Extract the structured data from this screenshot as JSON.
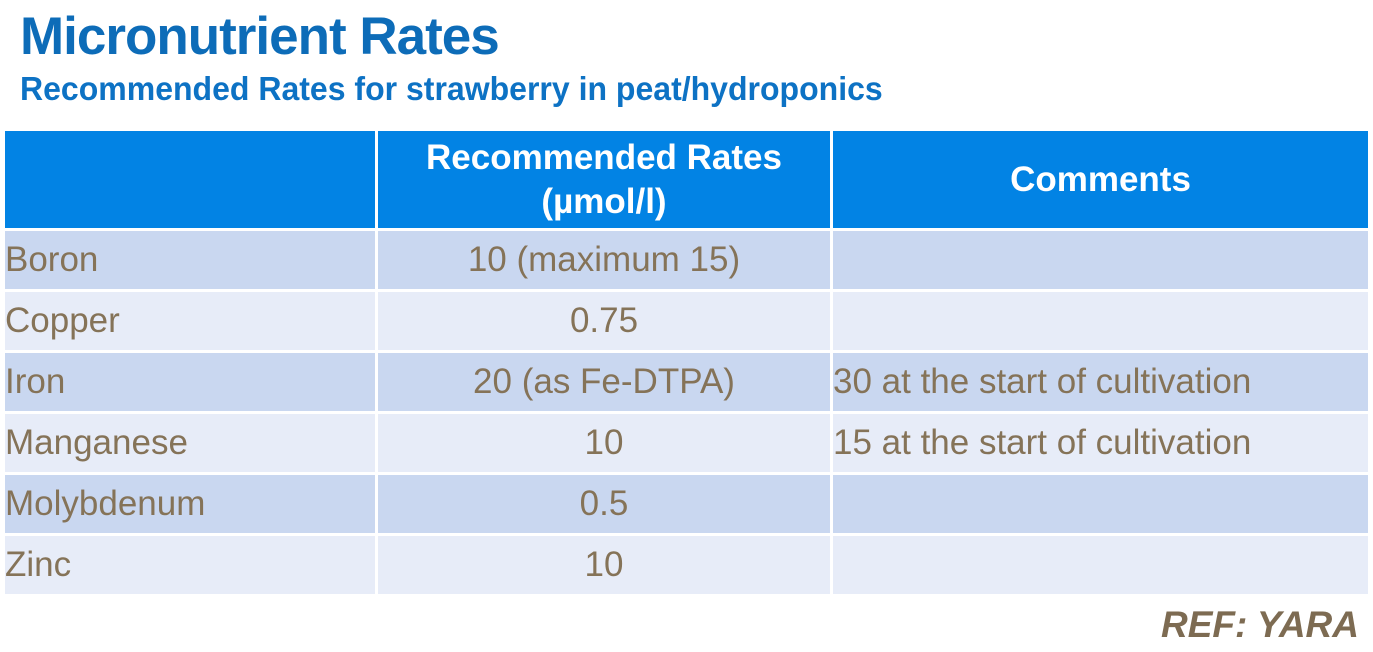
{
  "page": {
    "title": "Micronutrient Rates",
    "subtitle": "Recommended Rates for strawberry in peat/hydroponics",
    "footer_ref": "REF: YARA"
  },
  "colors": {
    "title_blue": "#0d6cb8",
    "subtitle_blue": "#0d72c4",
    "header_row_blue": "#0283e4",
    "header_text": "#ffffff",
    "row_stripe_dark": "#c9d7f0",
    "row_stripe_light": "#e7ecf8",
    "body_text_brown": "#857358",
    "footer_text_brown": "#7d6b52"
  },
  "table": {
    "header": {
      "nutrient_col": "",
      "rate_col_line1": "Recommended Rates",
      "rate_col_line2": "(µmol/l)",
      "comments_col": "Comments"
    },
    "rows": [
      {
        "nutrient": "Boron",
        "rate": "10 (maximum 15)",
        "comment": ""
      },
      {
        "nutrient": "Copper",
        "rate": "0.75",
        "comment": ""
      },
      {
        "nutrient": "Iron",
        "rate": "20 (as Fe-DTPA)",
        "comment": "30 at the start of cultivation"
      },
      {
        "nutrient": "Manganese",
        "rate": "10",
        "comment": "15 at the start of cultivation"
      },
      {
        "nutrient": "Molybdenum",
        "rate": "0.5",
        "comment": ""
      },
      {
        "nutrient": "Zinc",
        "rate": "10",
        "comment": ""
      }
    ]
  }
}
